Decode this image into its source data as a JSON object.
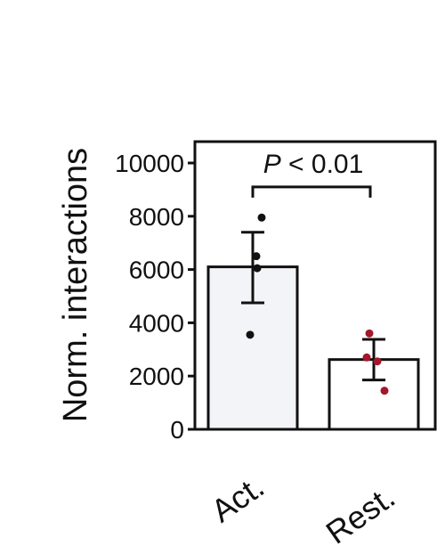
{
  "chart_data": {
    "type": "bar",
    "ylabel": "Norm. interactions",
    "ylim": [
      0,
      10800
    ],
    "yticks": [
      0,
      2000,
      4000,
      6000,
      8000,
      10000
    ],
    "ytick_labels": [
      "0",
      "2000",
      "4000",
      "6000",
      "8000",
      "10000"
    ],
    "categories": [
      "Act.",
      "Rest."
    ],
    "values": [
      6100,
      2620
    ],
    "error_low": [
      4750,
      1850
    ],
    "error_high": [
      7400,
      3380
    ],
    "points": [
      [
        7950,
        6500,
        6050,
        3550
      ],
      [
        3600,
        2700,
        2550,
        1450
      ]
    ],
    "point_colors": [
      "#111111",
      "#a3182a"
    ],
    "bar_fill": [
      "#f3f4f7",
      "#ffffff"
    ],
    "significance": {
      "p_italic": "P",
      "rest": " < 0.01",
      "bracket_y": 9100
    }
  }
}
